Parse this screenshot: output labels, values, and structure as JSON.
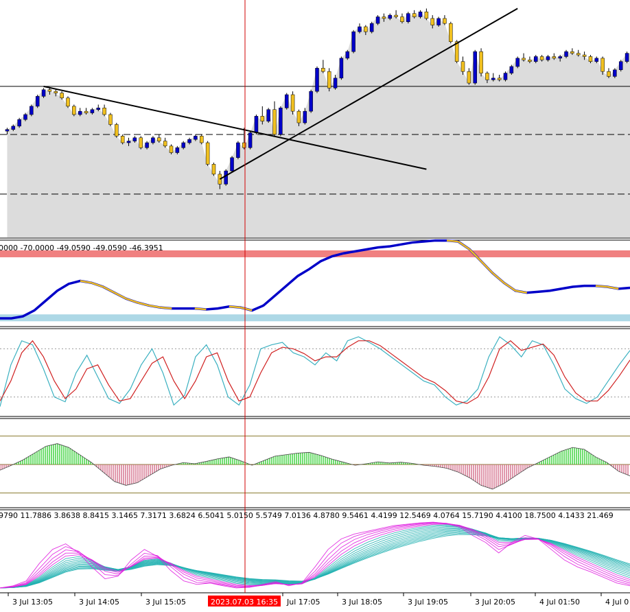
{
  "colors": {
    "background": "#ffffff",
    "price_area": "#dcdcdc",
    "candle_up": "#0000c8",
    "candle_down": "#f0c020",
    "rsi_line": "#0000c8",
    "rsi_line_down": "#f0c020",
    "overbought_zone": "#f08080",
    "oversold_zone": "#add8e6",
    "stoch_main": "#3ab0c0",
    "stoch_signal": "#d02020",
    "hist_pos": "#22cc22",
    "hist_neg": "#d06080",
    "ribbon_fast": "#e020e0",
    "ribbon_slow": "#20b0b0",
    "crosshair": "#d00000",
    "time_label_bg": "#ff0000",
    "time_label_fg": "#ffffff"
  },
  "chart_data": [
    {
      "type": "candlestick",
      "name": "price",
      "candles": [
        [
          0.6,
          0.62,
          0.58,
          0.61
        ],
        [
          0.61,
          0.64,
          0.6,
          0.63
        ],
        [
          0.63,
          0.68,
          0.62,
          0.67
        ],
        [
          0.67,
          0.71,
          0.66,
          0.7
        ],
        [
          0.7,
          0.76,
          0.69,
          0.75
        ],
        [
          0.75,
          0.82,
          0.74,
          0.81
        ],
        [
          0.81,
          0.86,
          0.8,
          0.85
        ],
        [
          0.85,
          0.86,
          0.82,
          0.84
        ],
        [
          0.84,
          0.85,
          0.81,
          0.83
        ],
        [
          0.83,
          0.84,
          0.79,
          0.8
        ],
        [
          0.8,
          0.81,
          0.74,
          0.75
        ],
        [
          0.75,
          0.76,
          0.69,
          0.7
        ],
        [
          0.7,
          0.74,
          0.69,
          0.72
        ],
        [
          0.72,
          0.74,
          0.7,
          0.71
        ],
        [
          0.71,
          0.74,
          0.7,
          0.73
        ],
        [
          0.73,
          0.76,
          0.72,
          0.74
        ],
        [
          0.74,
          0.76,
          0.69,
          0.7
        ],
        [
          0.7,
          0.71,
          0.63,
          0.64
        ],
        [
          0.64,
          0.65,
          0.56,
          0.57
        ],
        [
          0.57,
          0.58,
          0.52,
          0.53
        ],
        [
          0.53,
          0.56,
          0.51,
          0.54
        ],
        [
          0.54,
          0.57,
          0.53,
          0.56
        ],
        [
          0.56,
          0.57,
          0.49,
          0.5
        ],
        [
          0.5,
          0.54,
          0.49,
          0.53
        ],
        [
          0.53,
          0.57,
          0.52,
          0.56
        ],
        [
          0.56,
          0.58,
          0.53,
          0.54
        ],
        [
          0.54,
          0.56,
          0.5,
          0.51
        ],
        [
          0.51,
          0.52,
          0.46,
          0.47
        ],
        [
          0.47,
          0.51,
          0.46,
          0.5
        ],
        [
          0.5,
          0.54,
          0.49,
          0.53
        ],
        [
          0.53,
          0.56,
          0.52,
          0.55
        ],
        [
          0.55,
          0.58,
          0.54,
          0.57
        ],
        [
          0.57,
          0.58,
          0.52,
          0.53
        ],
        [
          0.53,
          0.54,
          0.39,
          0.4
        ],
        [
          0.4,
          0.41,
          0.33,
          0.34
        ],
        [
          0.34,
          0.36,
          0.25,
          0.28
        ],
        [
          0.28,
          0.37,
          0.27,
          0.36
        ],
        [
          0.36,
          0.45,
          0.35,
          0.44
        ],
        [
          0.44,
          0.54,
          0.43,
          0.53
        ],
        [
          0.53,
          0.62,
          0.49,
          0.5
        ],
        [
          0.5,
          0.6,
          0.49,
          0.59
        ],
        [
          0.59,
          0.7,
          0.58,
          0.69
        ],
        [
          0.69,
          0.75,
          0.64,
          0.66
        ],
        [
          0.66,
          0.74,
          0.65,
          0.73
        ],
        [
          0.73,
          0.78,
          0.57,
          0.58
        ],
        [
          0.58,
          0.75,
          0.57,
          0.74
        ],
        [
          0.74,
          0.83,
          0.73,
          0.82
        ],
        [
          0.82,
          0.84,
          0.7,
          0.72
        ],
        [
          0.72,
          0.73,
          0.63,
          0.65
        ],
        [
          0.65,
          0.74,
          0.64,
          0.72
        ],
        [
          0.72,
          0.85,
          0.71,
          0.84
        ],
        [
          0.84,
          0.99,
          0.83,
          0.98
        ],
        [
          0.98,
          1.03,
          0.95,
          0.96
        ],
        [
          0.96,
          0.98,
          0.84,
          0.86
        ],
        [
          0.86,
          0.94,
          0.85,
          0.92
        ],
        [
          0.92,
          1.05,
          0.91,
          1.04
        ],
        [
          1.04,
          1.09,
          1.03,
          1.08
        ],
        [
          1.08,
          1.21,
          1.07,
          1.2
        ],
        [
          1.2,
          1.25,
          1.19,
          1.23
        ],
        [
          1.23,
          1.24,
          1.18,
          1.2
        ],
        [
          1.2,
          1.26,
          1.19,
          1.25
        ],
        [
          1.25,
          1.3,
          1.24,
          1.29
        ],
        [
          1.29,
          1.31,
          1.26,
          1.28
        ],
        [
          1.28,
          1.31,
          1.27,
          1.3
        ],
        [
          1.3,
          1.33,
          1.28,
          1.29
        ],
        [
          1.29,
          1.31,
          1.25,
          1.26
        ],
        [
          1.26,
          1.32,
          1.25,
          1.31
        ],
        [
          1.31,
          1.33,
          1.28,
          1.29
        ],
        [
          1.29,
          1.33,
          1.28,
          1.32
        ],
        [
          1.32,
          1.34,
          1.27,
          1.28
        ],
        [
          1.28,
          1.3,
          1.22,
          1.24
        ],
        [
          1.24,
          1.29,
          1.23,
          1.28
        ],
        [
          1.28,
          1.3,
          1.24,
          1.25
        ],
        [
          1.25,
          1.26,
          1.13,
          1.14
        ],
        [
          1.14,
          1.15,
          1.01,
          1.02
        ],
        [
          1.02,
          1.05,
          0.94,
          0.96
        ],
        [
          0.96,
          0.98,
          0.88,
          0.89
        ],
        [
          0.89,
          1.09,
          0.88,
          1.08
        ],
        [
          1.08,
          1.1,
          0.93,
          0.95
        ],
        [
          0.95,
          0.96,
          0.89,
          0.91
        ],
        [
          0.91,
          0.95,
          0.9,
          0.92
        ],
        [
          0.92,
          0.94,
          0.9,
          0.91
        ],
        [
          0.91,
          0.96,
          0.9,
          0.95
        ],
        [
          0.95,
          1.0,
          0.94,
          0.99
        ],
        [
          0.99,
          1.05,
          0.98,
          1.04
        ],
        [
          1.04,
          1.07,
          1.02,
          1.03
        ],
        [
          1.03,
          1.05,
          1.01,
          1.02
        ],
        [
          1.02,
          1.06,
          1.01,
          1.05
        ],
        [
          1.05,
          1.06,
          1.02,
          1.03
        ],
        [
          1.03,
          1.06,
          1.02,
          1.05
        ],
        [
          1.05,
          1.07,
          1.03,
          1.04
        ],
        [
          1.04,
          1.06,
          1.02,
          1.05
        ],
        [
          1.05,
          1.09,
          1.04,
          1.08
        ],
        [
          1.08,
          1.1,
          1.06,
          1.07
        ],
        [
          1.07,
          1.09,
          1.05,
          1.06
        ],
        [
          1.06,
          1.08,
          1.03,
          1.05
        ],
        [
          1.05,
          1.06,
          1.01,
          1.02
        ],
        [
          1.02,
          1.05,
          1.01,
          1.04
        ],
        [
          1.04,
          1.05,
          0.94,
          0.96
        ],
        [
          0.96,
          0.98,
          0.92,
          0.93
        ],
        [
          0.93,
          0.98,
          0.92,
          0.97
        ],
        [
          0.97,
          1.03,
          0.96,
          1.02
        ],
        [
          1.02,
          1.08,
          1.01,
          1.07
        ]
      ],
      "horizontal_lines": [
        {
          "y": 0.87,
          "style": "solid"
        },
        {
          "y": 0.58,
          "style": "dashed"
        },
        {
          "y": 0.22,
          "style": "dashed"
        }
      ],
      "trendlines": [
        {
          "x": [
            6,
            69
          ],
          "y": [
            0.87,
            0.37
          ]
        },
        {
          "x": [
            35,
            84
          ],
          "y": [
            0.31,
            1.34
          ]
        }
      ],
      "ylim": [
        0.0,
        1.35
      ]
    },
    {
      "type": "line",
      "name": "oscillator",
      "header_values": "0000 -70.0000 -49.0590 -49.0590 -46.3951",
      "series": [
        {
          "values": [
            -88,
            -88,
            -86,
            -80,
            -70,
            -60,
            -53,
            -50,
            -52,
            -56,
            -62,
            -68,
            -72,
            -75,
            -77,
            -78,
            -78,
            -78,
            -79,
            -78,
            -76,
            -77,
            -80,
            -75,
            -65,
            -55,
            -45,
            -38,
            -30,
            -25,
            -22,
            -20,
            -18,
            -16,
            -15,
            -13,
            -11,
            -10,
            -9,
            -9,
            -10,
            -18,
            -30,
            -42,
            -52,
            -60,
            -62,
            -61,
            -60,
            -58,
            -56,
            -55,
            -55,
            -56,
            -58,
            -57
          ]
        }
      ],
      "bands": [
        {
          "from": -26,
          "to": -19
        },
        {
          "from": -91,
          "to": -84
        }
      ],
      "ylim": [
        -95,
        -10
      ]
    },
    {
      "type": "line",
      "name": "stochastic",
      "series": [
        {
          "values": [
            8,
            60,
            90,
            85,
            55,
            20,
            14,
            50,
            72,
            45,
            18,
            12,
            30,
            60,
            80,
            50,
            10,
            22,
            70,
            85,
            60,
            20,
            10,
            35,
            80,
            85,
            88,
            75,
            70,
            60,
            75,
            65,
            90,
            95,
            88,
            80,
            70,
            60,
            50,
            40,
            35,
            20,
            10,
            15,
            30,
            70,
            95,
            85,
            70,
            90,
            85,
            60,
            30,
            18,
            12,
            20,
            40,
            60,
            78
          ]
        },
        {
          "values": [
            15,
            40,
            75,
            90,
            70,
            40,
            18,
            30,
            55,
            60,
            35,
            15,
            18,
            40,
            62,
            70,
            40,
            18,
            40,
            70,
            75,
            40,
            15,
            20,
            50,
            75,
            82,
            80,
            74,
            65,
            70,
            70,
            82,
            90,
            90,
            84,
            74,
            64,
            54,
            44,
            38,
            28,
            15,
            12,
            20,
            45,
            80,
            90,
            78,
            82,
            86,
            72,
            45,
            25,
            15,
            15,
            28,
            46,
            66
          ]
        }
      ],
      "guides": [
        80,
        20
      ],
      "ylim": [
        0,
        100
      ]
    },
    {
      "type": "bar",
      "name": "histogram",
      "values": [
        -0.15,
        -0.02,
        0.12,
        0.3,
        0.48,
        0.55,
        0.45,
        0.25,
        0.05,
        -0.2,
        -0.45,
        -0.55,
        -0.48,
        -0.3,
        -0.12,
        -0.02,
        0.05,
        0.02,
        0.08,
        0.15,
        0.2,
        0.1,
        -0.02,
        0.1,
        0.22,
        0.26,
        0.3,
        0.32,
        0.24,
        0.14,
        0.06,
        -0.02,
        0.02,
        0.07,
        0.04,
        0.06,
        0.03,
        -0.02,
        -0.05,
        -0.1,
        -0.2,
        -0.35,
        -0.55,
        -0.65,
        -0.5,
        -0.3,
        -0.1,
        0.05,
        0.2,
        0.35,
        0.45,
        0.4,
        0.2,
        0.05,
        -0.18,
        -0.3
      ],
      "guides": [
        0.75,
        -0.75
      ],
      "ylim": [
        -0.85,
        0.85
      ]
    },
    {
      "type": "line",
      "name": "ma_ribbon",
      "header_values": "9790 11.7886 3.8638 8.8415 3.1465 7.3171 3.6824 6.5041 5.0150 5.5749 7.0136 4.8780 9.5461 4.4199 12.5469 4.0764 15.7190 4.4100 18.7500 4.1433 21.469",
      "base": [
        5,
        8,
        15,
        40,
        60,
        68,
        55,
        35,
        18,
        22,
        45,
        60,
        50,
        30,
        15,
        10,
        12,
        8,
        5,
        6,
        10,
        14,
        8,
        12,
        35,
        60,
        75,
        82,
        86,
        90,
        94,
        96,
        98,
        99,
        97,
        92,
        80,
        70,
        55,
        70,
        80,
        75,
        60,
        45,
        35,
        28,
        20,
        12,
        8
      ]
    }
  ],
  "x_axis": {
    "ticks": [
      "3 Jul 13:05",
      "3 Jul 14:05",
      "3 Jul 15:05",
      "Jul 17:05",
      "3 Jul 18:05",
      "3 Jul 19:05",
      "3 Jul 20:05",
      "4 Jul 01:50",
      "4 Jul 0"
    ]
  },
  "crosshair": {
    "label": "2023.07.03 16:35"
  }
}
